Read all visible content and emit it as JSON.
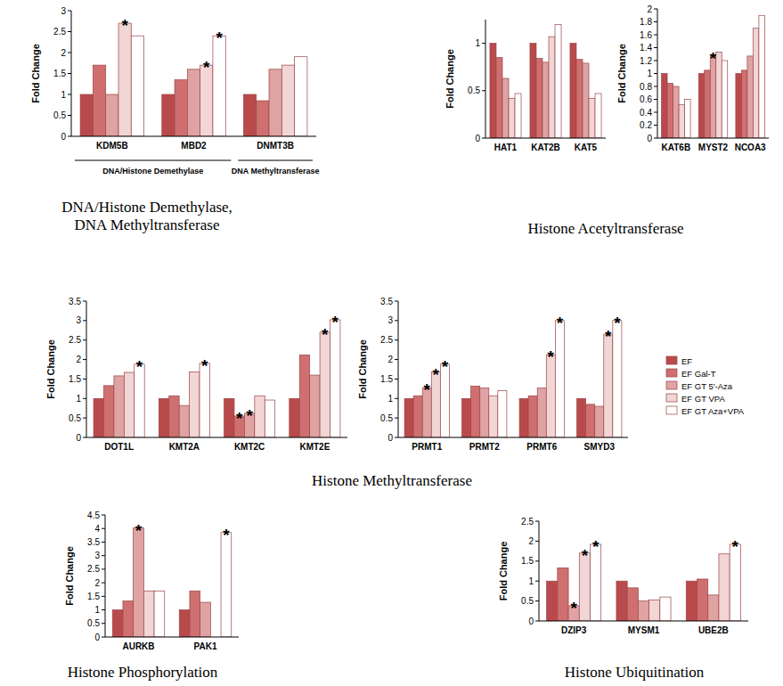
{
  "chart_data": [
    {
      "type": "bar",
      "title": "DNA/Histone Demethylase, DNA Methyltransferase",
      "y_label": "Fold Change",
      "categories": [
        "KDM5B",
        "MBD2",
        "DNMT3B"
      ],
      "groups": [
        {
          "label": "DNA/Histone Demethylase",
          "categories": [
            "KDM5B",
            "MBD2"
          ]
        },
        {
          "label": "DNA Methyltransferase",
          "categories": [
            "DNMT3B"
          ]
        }
      ],
      "series": [
        {
          "name": "EF",
          "color": "#b94a4c",
          "values": [
            1,
            1,
            1
          ]
        },
        {
          "name": "EF Gal-T",
          "color": "#cf6f70",
          "values": [
            1.7,
            1.35,
            0.85
          ]
        },
        {
          "name": "EF GT 5'-Aza",
          "color": "#dfa3a3",
          "values": [
            1.0,
            1.6,
            1.6
          ]
        },
        {
          "name": "EF GT VPA",
          "color": "#f2d5d5",
          "values": [
            2.7,
            1.7,
            1.7
          ]
        },
        {
          "name": "EF GT Aza+VPA",
          "color": "#ffffff",
          "values": [
            2.4,
            2.4,
            1.9
          ]
        }
      ],
      "annotations": [
        {
          "text": "*",
          "category": "KDM5B",
          "series": "EF GT VPA"
        },
        {
          "text": "*",
          "category": "MBD2",
          "series": "EF GT VPA"
        },
        {
          "text": "*",
          "category": "MBD2",
          "series": "EF GT Aza+VPA"
        }
      ],
      "ylim": [
        0,
        3
      ],
      "yticks": [
        0,
        0.5,
        1,
        1.5,
        2,
        2.5,
        3
      ]
    },
    {
      "type": "bar",
      "title": "Histone Acetyltransferase",
      "y_label": "Fold Change",
      "categories": [
        "HAT1",
        "KAT2B",
        "KAT5"
      ],
      "series": [
        {
          "name": "EF",
          "color": "#b94a4c",
          "values": [
            1,
            1,
            1
          ]
        },
        {
          "name": "EF Gal-T",
          "color": "#cf6f70",
          "values": [
            0.85,
            0.84,
            0.83
          ]
        },
        {
          "name": "EF GT 5'-Aza",
          "color": "#dfa3a3",
          "values": [
            0.63,
            0.8,
            0.79
          ]
        },
        {
          "name": "EF GT VPA",
          "color": "#f2d5d5",
          "values": [
            0.42,
            1.07,
            0.42
          ]
        },
        {
          "name": "EF GT Aza+VPA",
          "color": "#ffffff",
          "values": [
            0.47,
            1.2,
            0.47
          ]
        }
      ],
      "ylim": [
        0,
        1.25
      ],
      "yticks": [
        0,
        0.5,
        1
      ]
    },
    {
      "type": "bar",
      "y_label": "Fold Change",
      "categories": [
        "KAT6B",
        "MYST2",
        "NCOA3"
      ],
      "series": [
        {
          "name": "EF",
          "color": "#b94a4c",
          "values": [
            1,
            1,
            1
          ]
        },
        {
          "name": "EF Gal-T",
          "color": "#cf6f70",
          "values": [
            0.85,
            1.05,
            1.05
          ]
        },
        {
          "name": "EF GT 5'-Aza",
          "color": "#dfa3a3",
          "values": [
            0.8,
            1.27,
            1.27
          ]
        },
        {
          "name": "EF GT VPA",
          "color": "#f2d5d5",
          "values": [
            0.52,
            1.33,
            1.7
          ]
        },
        {
          "name": "EF GT Aza+VPA",
          "color": "#ffffff",
          "values": [
            0.6,
            1.2,
            1.9
          ]
        }
      ],
      "annotations": [
        {
          "text": "*",
          "category": "MYST2",
          "series": "EF GT 5'-Aza"
        }
      ],
      "ylim": [
        0,
        2
      ],
      "yticks": [
        0,
        0.2,
        0.4,
        0.6,
        0.8,
        1,
        1.2,
        1.4,
        1.6,
        1.8,
        2
      ]
    },
    {
      "type": "bar",
      "title": "Histone Methyltransferase",
      "y_label": "Fold Change",
      "categories": [
        "DOT1L",
        "KMT2A",
        "KMT2C",
        "KMT2E"
      ],
      "series": [
        {
          "name": "EF",
          "color": "#b94a4c",
          "values": [
            1,
            1,
            1,
            1
          ]
        },
        {
          "name": "EF Gal-T",
          "color": "#cf6f70",
          "values": [
            1.33,
            1.07,
            0.55,
            2.12
          ]
        },
        {
          "name": "EF GT 5'-Aza",
          "color": "#dfa3a3",
          "values": [
            1.58,
            0.82,
            0.62,
            1.6
          ]
        },
        {
          "name": "EF GT VPA",
          "color": "#f2d5d5",
          "values": [
            1.67,
            1.68,
            1.07,
            2.7
          ]
        },
        {
          "name": "EF GT Aza+VPA",
          "color": "#ffffff",
          "values": [
            1.88,
            1.9,
            0.96,
            3.02
          ]
        }
      ],
      "annotations": [
        {
          "text": "*",
          "category": "DOT1L",
          "series": "EF GT Aza+VPA"
        },
        {
          "text": "*",
          "category": "KMT2A",
          "series": "EF GT Aza+VPA"
        },
        {
          "text": "*",
          "category": "KMT2C",
          "series": "EF Gal-T"
        },
        {
          "text": "*",
          "category": "KMT2C",
          "series": "EF GT 5'-Aza"
        },
        {
          "text": "*",
          "category": "KMT2E",
          "series": "EF GT VPA"
        },
        {
          "text": "*",
          "category": "KMT2E",
          "series": "EF GT Aza+VPA"
        }
      ],
      "ylim": [
        0,
        3.5
      ],
      "yticks": [
        0,
        0.5,
        1,
        1.5,
        2,
        2.5,
        3,
        3.5
      ]
    },
    {
      "type": "bar",
      "y_label": "Fold Change",
      "legend": "right",
      "categories": [
        "PRMT1",
        "PRMT2",
        "PRMT6",
        "SMYD3"
      ],
      "series": [
        {
          "name": "EF",
          "color": "#b94a4c",
          "values": [
            1,
            1,
            1,
            1
          ]
        },
        {
          "name": "EF Gal-T",
          "color": "#cf6f70",
          "values": [
            1.07,
            1.32,
            1.07,
            0.85
          ]
        },
        {
          "name": "EF GT 5'-Aza",
          "color": "#dfa3a3",
          "values": [
            1.27,
            1.27,
            1.27,
            0.8
          ]
        },
        {
          "name": "EF GT VPA",
          "color": "#f2d5d5",
          "values": [
            1.68,
            1.07,
            2.12,
            2.65
          ]
        },
        {
          "name": "EF GT Aza+VPA",
          "color": "#ffffff",
          "values": [
            1.88,
            1.2,
            3.0,
            3.0
          ]
        }
      ],
      "annotations": [
        {
          "text": "*",
          "category": "PRMT1",
          "series": "EF GT 5'-Aza"
        },
        {
          "text": "*",
          "category": "PRMT1",
          "series": "EF GT VPA"
        },
        {
          "text": "*",
          "category": "PRMT1",
          "series": "EF GT Aza+VPA"
        },
        {
          "text": "*",
          "category": "PRMT6",
          "series": "EF GT VPA"
        },
        {
          "text": "*",
          "category": "PRMT6",
          "series": "EF GT Aza+VPA"
        },
        {
          "text": "*",
          "category": "SMYD3",
          "series": "EF GT VPA"
        },
        {
          "text": "*",
          "category": "SMYD3",
          "series": "EF GT Aza+VPA"
        }
      ],
      "ylim": [
        0,
        3.5
      ],
      "yticks": [
        0,
        0.5,
        1,
        1.5,
        2,
        2.5,
        3,
        3.5
      ]
    },
    {
      "type": "bar",
      "title": "Histone Phosphorylation",
      "y_label": "Fold Change",
      "categories": [
        "AURKB",
        "PAK1"
      ],
      "series": [
        {
          "name": "EF",
          "color": "#b94a4c",
          "values": [
            1,
            1
          ]
        },
        {
          "name": "EF Gal-T",
          "color": "#cf6f70",
          "values": [
            1.33,
            1.7
          ]
        },
        {
          "name": "EF GT 5'-Aza",
          "color": "#dfa3a3",
          "values": [
            4.02,
            1.28
          ]
        },
        {
          "name": "EF GT VPA",
          "color": "#f2d5d5",
          "values": [
            1.7,
            null
          ]
        },
        {
          "name": "EF GT Aza+VPA",
          "color": "#ffffff",
          "values": [
            1.7,
            3.85
          ]
        }
      ],
      "annotations": [
        {
          "text": "*",
          "category": "AURKB",
          "series": "EF GT 5'-Aza"
        },
        {
          "text": "*",
          "category": "PAK1",
          "series": "EF GT Aza+VPA"
        }
      ],
      "ylim": [
        0,
        4.5
      ],
      "yticks": [
        0,
        0.5,
        1,
        1.5,
        2,
        2.5,
        3,
        3.5,
        4,
        4.5
      ]
    },
    {
      "type": "bar",
      "title": "Histone Ubiquitination",
      "y_label": "Fold Change",
      "categories": [
        "DZIP3",
        "MYSM1",
        "UBE2B"
      ],
      "series": [
        {
          "name": "EF",
          "color": "#b94a4c",
          "values": [
            1,
            1,
            1
          ]
        },
        {
          "name": "EF Gal-T",
          "color": "#cf6f70",
          "values": [
            1.33,
            0.83,
            1.05
          ]
        },
        {
          "name": "EF GT 5'-Aza",
          "color": "#dfa3a3",
          "values": [
            0.38,
            0.5,
            0.65
          ]
        },
        {
          "name": "EF GT VPA",
          "color": "#f2d5d5",
          "values": [
            1.7,
            0.53,
            1.68
          ]
        },
        {
          "name": "EF GT Aza+VPA",
          "color": "#ffffff",
          "values": [
            1.92,
            0.6,
            1.92
          ]
        }
      ],
      "annotations": [
        {
          "text": "*",
          "category": "DZIP3",
          "series": "EF GT 5'-Aza"
        },
        {
          "text": "*",
          "category": "DZIP3",
          "series": "EF GT VPA"
        },
        {
          "text": "*",
          "category": "DZIP3",
          "series": "EF GT Aza+VPA"
        },
        {
          "text": "*",
          "category": "UBE2B",
          "series": "EF GT Aza+VPA"
        }
      ],
      "ylim": [
        0,
        2.5
      ],
      "yticks": [
        0,
        0.5,
        1,
        1.5,
        2,
        2.5
      ]
    }
  ]
}
